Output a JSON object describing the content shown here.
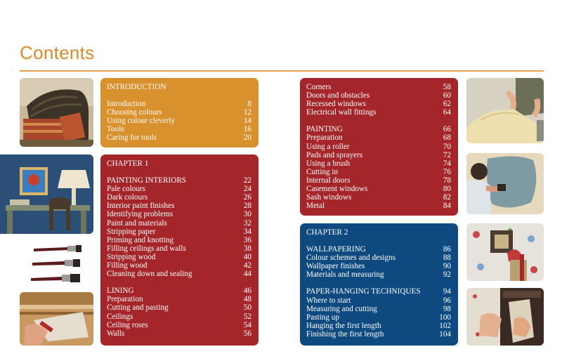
{
  "page": {
    "title": "Contents"
  },
  "colors": {
    "accent": "#d98a2b",
    "orange": "#d9912e",
    "red": "#a4262a",
    "blue": "#0e4a80"
  },
  "introduction": {
    "heading": "INTRODUCTION",
    "entries": [
      {
        "label": "Introduction",
        "page": "8"
      },
      {
        "label": "Choosing colours",
        "page": "12"
      },
      {
        "label": "Using colour cleverly",
        "page": "14"
      },
      {
        "label": "Tools",
        "page": "16"
      },
      {
        "label": "Caring for tools",
        "page": "20"
      }
    ]
  },
  "chapter1": {
    "heading": "CHAPTER 1",
    "sections": [
      {
        "entries": [
          {
            "label": "PAINTING INTERIORS",
            "page": "22"
          },
          {
            "label": "Pale colours",
            "page": "24"
          },
          {
            "label": "Dark colours",
            "page": "26"
          },
          {
            "label": "Interior paint finishes",
            "page": "28"
          },
          {
            "label": "Identifying problems",
            "page": "30"
          },
          {
            "label": "Paint and materials",
            "page": "32"
          },
          {
            "label": "Stripping paper",
            "page": "34"
          },
          {
            "label": "Priming and knotting",
            "page": "36"
          },
          {
            "label": "Filling ceilings and walls",
            "page": "38"
          },
          {
            "label": "Stripping wood",
            "page": "40"
          },
          {
            "label": "Filling wood",
            "page": "42"
          },
          {
            "label": "Cleaning down and sealing",
            "page": "44"
          }
        ]
      },
      {
        "entries": [
          {
            "label": "LINING",
            "page": "46"
          },
          {
            "label": "Preparation",
            "page": "48"
          },
          {
            "label": "Cutting and pasting",
            "page": "50"
          },
          {
            "label": "Ceilings",
            "page": "52"
          },
          {
            "label": "Ceiling roses",
            "page": "54"
          },
          {
            "label": "Walls",
            "page": "56"
          }
        ]
      }
    ]
  },
  "chapter1_continued": {
    "sections": [
      {
        "entries": [
          {
            "label": "Corners",
            "page": "58"
          },
          {
            "label": "Doors and obstacles",
            "page": "60"
          },
          {
            "label": "Recessed windows",
            "page": "62"
          },
          {
            "label": "Electrical wall fittings",
            "page": "64"
          }
        ]
      },
      {
        "entries": [
          {
            "label": "PAINTING",
            "page": "66"
          },
          {
            "label": "Preparation",
            "page": "68"
          },
          {
            "label": "Using a roller",
            "page": "70"
          },
          {
            "label": "Pads and sprayers",
            "page": "72"
          },
          {
            "label": "Using a brush",
            "page": "74"
          },
          {
            "label": "Cutting in",
            "page": "76"
          },
          {
            "label": "Internal doors",
            "page": "78"
          },
          {
            "label": "Casement windows",
            "page": "80"
          },
          {
            "label": "Sash windows",
            "page": "82"
          },
          {
            "label": "Metal",
            "page": "84"
          }
        ]
      }
    ]
  },
  "chapter2": {
    "heading": "CHAPTER 2",
    "sections": [
      {
        "entries": [
          {
            "label": "WALLPAPERING",
            "page": "86"
          },
          {
            "label": "Colour schemes and designs",
            "page": "88"
          },
          {
            "label": "Wallpaper finishes",
            "page": "90"
          },
          {
            "label": "Materials and measuring",
            "page": "92"
          }
        ]
      },
      {
        "entries": [
          {
            "label": "PAPER-HANGING TECHNIQUES",
            "page": "94"
          },
          {
            "label": "Where to start",
            "page": "96"
          },
          {
            "label": "Measuring and cutting",
            "page": "98"
          },
          {
            "label": "Pasting up",
            "page": "100"
          },
          {
            "label": "Hanging the first length",
            "page": "102"
          },
          {
            "label": "Finishing the first length",
            "page": "104"
          }
        ]
      }
    ]
  },
  "photos": [
    {
      "name": "wicker-chair-photo"
    },
    {
      "name": "painted-desk-photo"
    },
    {
      "name": "paint-brushes-photo"
    },
    {
      "name": "cornice-scraping-photo"
    },
    {
      "name": "lining-paper-photo"
    },
    {
      "name": "painting-wall-photo"
    },
    {
      "name": "wallpaper-pattern-photo"
    },
    {
      "name": "hanging-wallpaper-photo"
    }
  ]
}
